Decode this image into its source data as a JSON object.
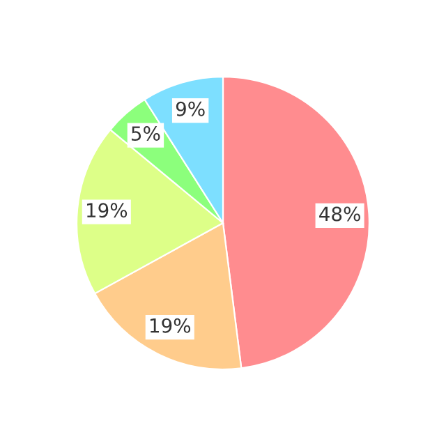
{
  "chart_data": {
    "type": "pie",
    "categories": [
      null,
      null,
      null,
      null,
      null
    ],
    "values": [
      48,
      19,
      19,
      5,
      9
    ],
    "colors": [
      "#ff8c8f",
      "#ffcc8c",
      "#ddff88",
      "#8cff7c",
      "#7ddfff"
    ],
    "value_labels": [
      "48%",
      "19%",
      "19%",
      "5%",
      "9%"
    ]
  }
}
